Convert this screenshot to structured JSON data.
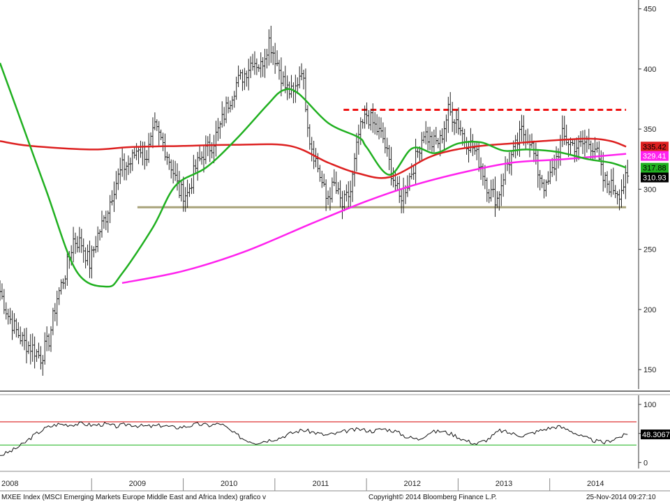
{
  "chart_data": {
    "type": "line",
    "footer": {
      "left": "MXEE Index (MSCI Emerging Markets Europe Middle East and Africa Index) grafico v",
      "center": "Copyright© 2014 Bloomberg Finance L.P.",
      "right": "25-Nov-2014 09:27:10"
    },
    "x_range": [
      "2008-01",
      "2014-12"
    ],
    "x_tick_labels": [
      "2008",
      "2009",
      "2010",
      "2011",
      "2012",
      "2013",
      "2014"
    ],
    "price_panel": {
      "y_range": [
        135,
        455
      ],
      "y_ticks": [
        150,
        200,
        250,
        300,
        350,
        400,
        450
      ],
      "price_series": {
        "type": "bar",
        "weekly_closes": [
          215,
          195,
          182,
          172,
          168,
          160,
          175,
          210,
          230,
          258,
          255,
          238,
          262,
          278,
          302,
          318,
          322,
          336,
          328,
          350,
          338,
          320,
          298,
          296,
          318,
          330,
          337,
          352,
          372,
          388,
          396,
          408,
          402,
          424,
          405,
          385,
          378,
          402,
          342,
          318,
          292,
          303,
          286,
          298,
          345,
          362,
          352,
          342,
          315,
          292,
          305,
          325,
          348,
          338,
          340,
          365,
          358,
          342,
          335,
          320,
          298,
          292,
          318,
          330,
          348,
          342,
          315,
          300,
          320,
          344,
          338,
          335,
          340,
          335,
          308,
          302,
          298,
          310
        ],
        "last_value": 310.93
      },
      "moving_average_green": {
        "points": [
          [
            "2008-01",
            405
          ],
          [
            "2008-03",
            370
          ],
          [
            "2008-07",
            300
          ],
          [
            "2008-11",
            232
          ],
          [
            "2009-03",
            219
          ],
          [
            "2009-05",
            230
          ],
          [
            "2009-09",
            268
          ],
          [
            "2009-12",
            303
          ],
          [
            "2010-04",
            318
          ],
          [
            "2010-08",
            342
          ],
          [
            "2010-12",
            370
          ],
          [
            "2011-02",
            382
          ],
          [
            "2011-04",
            380
          ],
          [
            "2011-08",
            355
          ],
          [
            "2011-12",
            343
          ],
          [
            "2012-01",
            335
          ],
          [
            "2012-04",
            312
          ],
          [
            "2012-07",
            334
          ],
          [
            "2012-10",
            330
          ],
          [
            "2013-01",
            338
          ],
          [
            "2013-04",
            339
          ],
          [
            "2013-07",
            332
          ],
          [
            "2013-10",
            333
          ],
          [
            "2014-02",
            331
          ],
          [
            "2014-06",
            325
          ],
          [
            "2014-09",
            322
          ],
          [
            "2014-11",
            317.88
          ]
        ],
        "last_value": 317.88
      },
      "moving_average_red": {
        "points": [
          [
            "2008-01",
            340
          ],
          [
            "2008-05",
            336
          ],
          [
            "2009-01",
            333
          ],
          [
            "2009-06",
            335
          ],
          [
            "2010-01",
            336
          ],
          [
            "2010-08",
            337
          ],
          [
            "2011-03",
            336
          ],
          [
            "2011-08",
            322
          ],
          [
            "2011-12",
            313
          ],
          [
            "2012-04",
            310
          ],
          [
            "2012-09",
            326
          ],
          [
            "2012-12",
            332
          ],
          [
            "2013-04",
            336
          ],
          [
            "2013-08",
            338
          ],
          [
            "2013-12",
            340
          ],
          [
            "2014-06",
            342
          ],
          [
            "2014-09",
            340
          ],
          [
            "2014-11",
            335.42
          ]
        ],
        "last_value": 335.42
      },
      "moving_average_magenta": {
        "points": [
          [
            "2009-05",
            222
          ],
          [
            "2010-01",
            232
          ],
          [
            "2010-09",
            248
          ],
          [
            "2011-06",
            272
          ],
          [
            "2012-01",
            290
          ],
          [
            "2012-07",
            303
          ],
          [
            "2013-01",
            313
          ],
          [
            "2013-08",
            322
          ],
          [
            "2014-03",
            325
          ],
          [
            "2014-11",
            329.41
          ]
        ],
        "last_value": 329.41
      },
      "resistance_line": {
        "value": 366,
        "from": "2011-10",
        "to": "2014-11",
        "color": "#ee1111",
        "style": "dashed"
      },
      "support_line": {
        "value": 285,
        "from": "2009-07",
        "to": "2014-11",
        "color": "#a8a27a",
        "style": "solid"
      }
    },
    "rsi_panel": {
      "y_range": [
        -8,
        112
      ],
      "y_ticks": [
        0,
        50,
        100
      ],
      "upper_band": 70,
      "lower_band": 30,
      "values": [
        12,
        20,
        32,
        48,
        60,
        66,
        65,
        67,
        64,
        66,
        62,
        66,
        63,
        62,
        64,
        60,
        62,
        66,
        64,
        67,
        52,
        40,
        34,
        38,
        42,
        50,
        56,
        52,
        47,
        50,
        55,
        57,
        54,
        58,
        54,
        44,
        40,
        52,
        54,
        48,
        38,
        32,
        40,
        55,
        50,
        46,
        52,
        58,
        62,
        56,
        45,
        38,
        34,
        42,
        48.3067
      ],
      "last_value": 48.3067
    },
    "colors": {
      "price": "#222222",
      "green": "#20b020",
      "red": "#dd2020",
      "magenta": "#ff22ee",
      "support": "#a8a27a",
      "rsi": "#111111"
    }
  }
}
